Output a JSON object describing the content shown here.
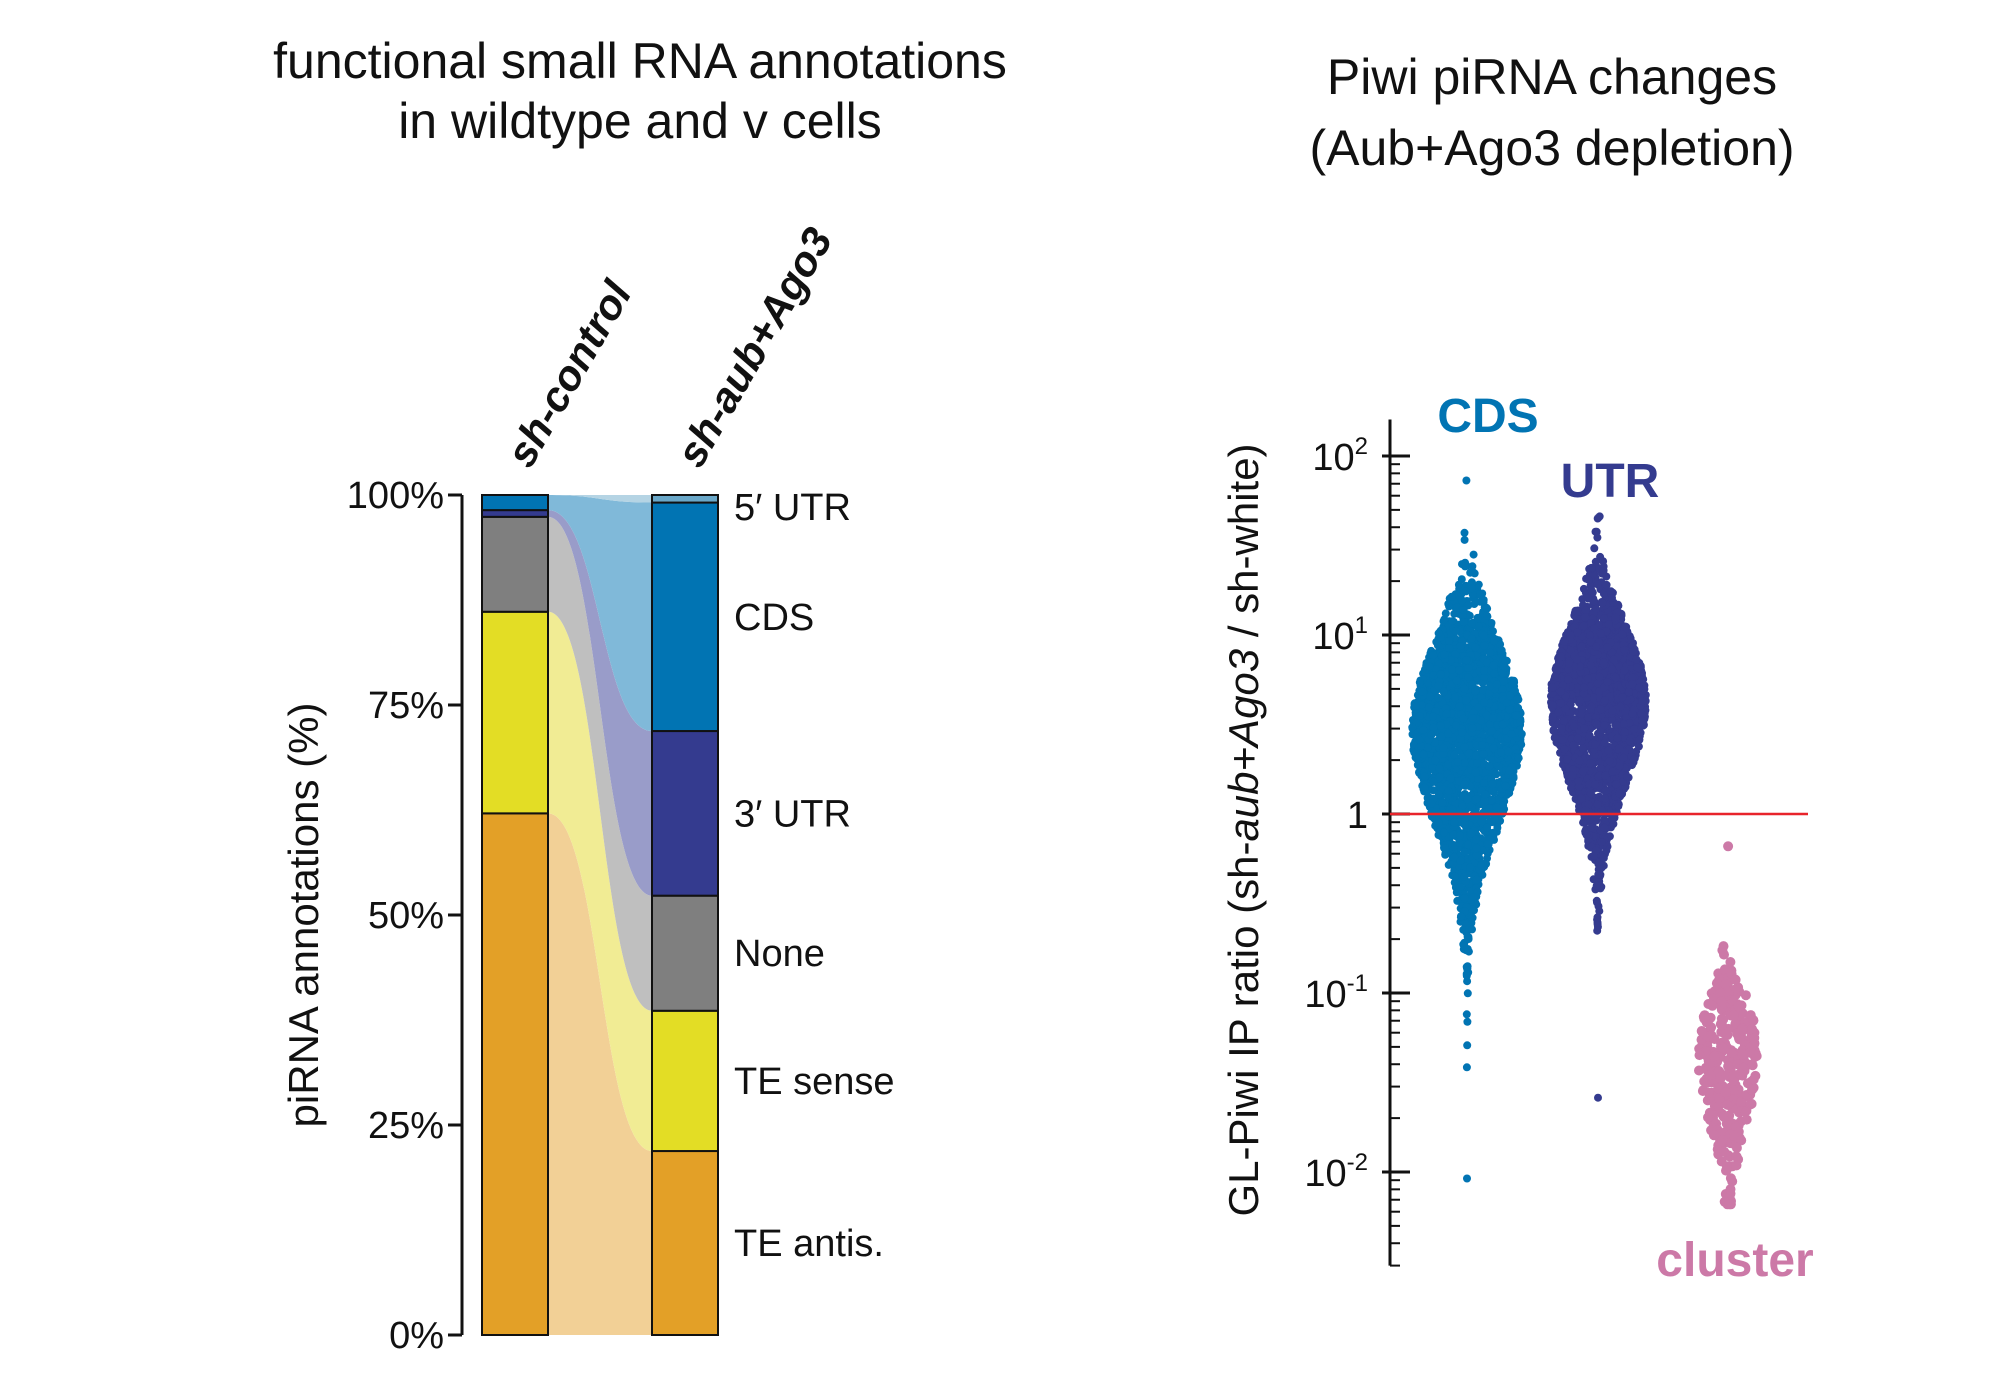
{
  "chart_data": [
    {
      "type": "bar",
      "subtype": "stacked-100-with-flows",
      "title_lines": [
        "functional small RNA annotations",
        "in wildtype and v cells"
      ],
      "ylabel": "piRNA annotations (%)",
      "ylim": [
        0,
        100
      ],
      "yticks": [
        0,
        25,
        50,
        75,
        100
      ],
      "ytick_labels": [
        "0%",
        "25%",
        "50%",
        "75%",
        "100%"
      ],
      "categories": [
        "sh-control",
        "sh-aub+Ago3"
      ],
      "category_label_parts": [
        [
          {
            "text": "sh-control",
            "italic": false
          }
        ],
        [
          {
            "text": "sh-",
            "italic": false
          },
          {
            "text": "aub",
            "italic": true
          },
          {
            "text": "+",
            "italic": false
          },
          {
            "text": "Ago3",
            "italic": true
          }
        ]
      ],
      "series": [
        {
          "name": "TE antis.",
          "color": "#E3A027",
          "flow_color": "#F2D096",
          "values": [
            62.1,
            21.9
          ]
        },
        {
          "name": "TE sense",
          "color": "#E3DD25",
          "flow_color": "#F1EC94",
          "values": [
            24.0,
            16.7
          ]
        },
        {
          "name": "None",
          "color": "#7F7F7F",
          "flow_color": "#BFBFBF",
          "values": [
            11.3,
            13.7
          ]
        },
        {
          "name": "3′ UTR",
          "color": "#343B8F",
          "flow_color": "#999CC9",
          "values": [
            0.8,
            19.6
          ]
        },
        {
          "name": "CDS",
          "color": "#0174B3",
          "flow_color": "#80B9D9",
          "values": [
            1.8,
            27.2
          ]
        },
        {
          "name": "5′ UTR",
          "color": "#6AA8C9",
          "flow_color": "#B5D4E4",
          "values": [
            0.0,
            0.9
          ]
        }
      ],
      "legend": "right of second bar"
    },
    {
      "type": "scatter",
      "subtype": "beeswarm",
      "title_lines": [
        "Piwi piRNA changes",
        "(Aub+Ago3 depletion)"
      ],
      "ylabel_parts": [
        {
          "text": "GL-Piwi IP ratio (sh-",
          "italic": false
        },
        {
          "text": "aub+Ago3",
          "italic": true
        },
        {
          "text": " / sh-white)",
          "italic": false
        }
      ],
      "yscale": "log",
      "ylim": [
        0.003,
        160
      ],
      "yticks": [
        0.01,
        0.1,
        1,
        10,
        100
      ],
      "ytick_labels": [
        {
          "base": "10",
          "exp": "-2"
        },
        {
          "base": "10",
          "exp": "-1"
        },
        {
          "base": "1",
          "exp": ""
        },
        {
          "base": "10",
          "exp": "1"
        },
        {
          "base": "10",
          "exp": "2"
        }
      ],
      "reference_line": {
        "y": 1,
        "color": "#E8242B"
      },
      "groups": [
        {
          "name": "CDS",
          "color": "#0174B3",
          "median": 3.0,
          "min": 0.0092,
          "max": 73,
          "q_low": 0.9,
          "q_high": 9
        },
        {
          "name": "UTR",
          "color": "#343B8F",
          "median": 4.3,
          "min": 0.026,
          "max": 46,
          "q_low": 1.5,
          "q_high": 11
        },
        {
          "name": "cluster",
          "color": "#CC79A7",
          "median": 0.044,
          "min": 0.0066,
          "max": 0.66,
          "q_low": 0.018,
          "q_high": 0.1
        }
      ],
      "grid": false,
      "legend": "group labels above/below swarms"
    }
  ]
}
